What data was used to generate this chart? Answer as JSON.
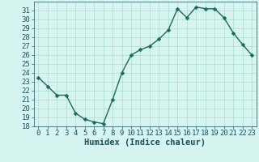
{
  "x": [
    0,
    1,
    2,
    3,
    4,
    5,
    6,
    7,
    8,
    9,
    10,
    11,
    12,
    13,
    14,
    15,
    16,
    17,
    18,
    19,
    20,
    21,
    22,
    23
  ],
  "y": [
    23.5,
    22.5,
    21.5,
    21.5,
    19.5,
    18.8,
    18.5,
    18.3,
    21.0,
    24.0,
    26.0,
    26.6,
    27.0,
    27.8,
    28.8,
    31.2,
    30.2,
    31.4,
    31.2,
    31.2,
    30.2,
    28.5,
    27.2,
    26.0
  ],
  "line_color": "#1a6b5a",
  "marker": "D",
  "marker_size": 2.5,
  "bg_color": "#d6f5f0",
  "grid_color": "#aaddcc",
  "xlabel": "Humidex (Indice chaleur)",
  "xlim": [
    -0.5,
    23.5
  ],
  "ylim": [
    18,
    32
  ],
  "yticks": [
    18,
    19,
    20,
    21,
    22,
    23,
    24,
    25,
    26,
    27,
    28,
    29,
    30,
    31
  ],
  "xticks": [
    0,
    1,
    2,
    3,
    4,
    5,
    6,
    7,
    8,
    9,
    10,
    11,
    12,
    13,
    14,
    15,
    16,
    17,
    18,
    19,
    20,
    21,
    22,
    23
  ],
  "font_color": "#1a5060",
  "tick_fontsize": 6.5,
  "xlabel_fontsize": 7.5,
  "line_width": 1.0
}
